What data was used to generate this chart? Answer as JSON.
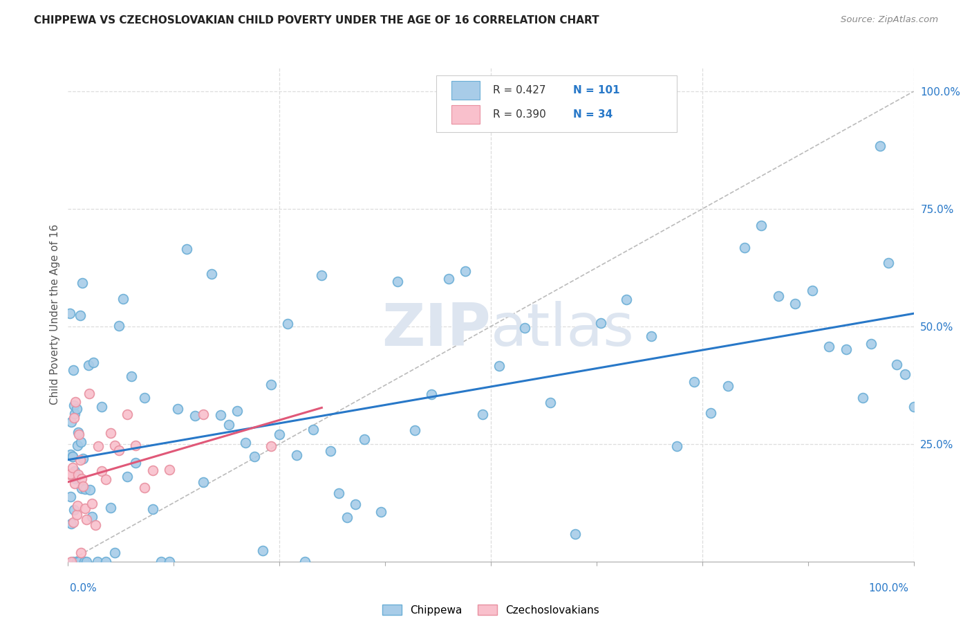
{
  "title": "CHIPPEWA VS CZECHOSLOVAKIAN CHILD POVERTY UNDER THE AGE OF 16 CORRELATION CHART",
  "source": "Source: ZipAtlas.com",
  "ylabel": "Child Poverty Under the Age of 16",
  "legend_label1": "Chippewa",
  "legend_label2": "Czechoslovakians",
  "r1": 0.427,
  "n1": 101,
  "r2": 0.39,
  "n2": 34,
  "blue_line_color": "#2878c8",
  "pink_line_color": "#e05878",
  "blue_dot_face": "#a8cce8",
  "blue_dot_edge": "#6aaed6",
  "pink_dot_face": "#f9c0cc",
  "pink_dot_edge": "#e890a0",
  "diagonal_line_color": "#bbbbbb",
  "grid_color": "#dddddd",
  "legend_r_color": "#2878c8",
  "legend_n_color": "#2878c8",
  "background_color": "#ffffff",
  "watermark_color": "#dde5f0",
  "seed": 7,
  "blue_x": [
    0.002,
    0.003,
    0.003,
    0.004,
    0.004,
    0.005,
    0.005,
    0.006,
    0.006,
    0.007,
    0.007,
    0.008,
    0.008,
    0.009,
    0.009,
    0.01,
    0.01,
    0.011,
    0.012,
    0.013,
    0.014,
    0.015,
    0.016,
    0.017,
    0.018,
    0.019,
    0.02,
    0.022,
    0.024,
    0.026,
    0.028,
    0.03,
    0.035,
    0.04,
    0.045,
    0.05,
    0.055,
    0.06,
    0.065,
    0.07,
    0.075,
    0.08,
    0.09,
    0.1,
    0.11,
    0.12,
    0.13,
    0.14,
    0.15,
    0.16,
    0.17,
    0.18,
    0.19,
    0.2,
    0.21,
    0.22,
    0.23,
    0.24,
    0.25,
    0.26,
    0.27,
    0.28,
    0.29,
    0.3,
    0.31,
    0.32,
    0.33,
    0.34,
    0.35,
    0.37,
    0.39,
    0.41,
    0.43,
    0.45,
    0.47,
    0.49,
    0.51,
    0.54,
    0.57,
    0.6,
    0.63,
    0.66,
    0.69,
    0.72,
    0.74,
    0.76,
    0.78,
    0.8,
    0.82,
    0.84,
    0.86,
    0.88,
    0.9,
    0.92,
    0.94,
    0.95,
    0.96,
    0.97,
    0.98,
    0.99,
    1.0
  ],
  "pink_x": [
    0.002,
    0.003,
    0.004,
    0.005,
    0.006,
    0.007,
    0.008,
    0.009,
    0.01,
    0.011,
    0.012,
    0.013,
    0.014,
    0.015,
    0.016,
    0.018,
    0.02,
    0.022,
    0.025,
    0.028,
    0.032,
    0.036,
    0.04,
    0.045,
    0.05,
    0.055,
    0.06,
    0.07,
    0.08,
    0.09,
    0.1,
    0.12,
    0.16,
    0.24
  ]
}
